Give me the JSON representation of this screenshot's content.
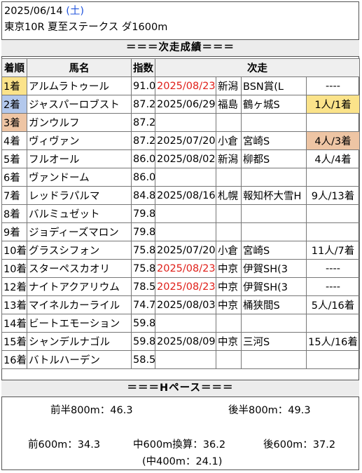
{
  "header": {
    "date": "2025/06/14",
    "weekday": "(土)",
    "race": "東京10R 夏至ステークス ダ1600m"
  },
  "sections": {
    "next_results": "＝＝＝次走成績＝＝＝",
    "pace": "＝＝＝Hペース＝＝＝"
  },
  "table": {
    "columns": [
      "着順",
      "馬名",
      "指数",
      "次走"
    ],
    "rows": [
      {
        "rank": "1着",
        "horse": "アルムラトゥール",
        "index": "91.0",
        "date": "2025/08/23",
        "place": "新潟",
        "race": "BSN賞(L",
        "result": "----"
      },
      {
        "rank": "2着",
        "horse": "ジャスパーロブスト",
        "index": "87.2",
        "date": "2025/06/29",
        "place": "福島",
        "race": "鶴ヶ城S",
        "result": "1人/1着"
      },
      {
        "rank": "3着",
        "horse": "ガンウルフ",
        "index": "87.2",
        "date": "",
        "place": "",
        "race": "",
        "result": ""
      },
      {
        "rank": "4着",
        "horse": "ヴィヴァン",
        "index": "87.2",
        "date": "2025/07/20",
        "place": "小倉",
        "race": "宮崎S",
        "result": "4人/3着"
      },
      {
        "rank": "5着",
        "horse": "フルオール",
        "index": "86.0",
        "date": "2025/08/02",
        "place": "新潟",
        "race": "柳都S",
        "result": "4人/4着"
      },
      {
        "rank": "6着",
        "horse": "ヴァンドーム",
        "index": "86.0",
        "date": "",
        "place": "",
        "race": "",
        "result": ""
      },
      {
        "rank": "7着",
        "horse": "レッドラパルマ",
        "index": "84.8",
        "date": "2025/08/16",
        "place": "札幌",
        "race": "報知杯大雪H",
        "result": "9人/13着"
      },
      {
        "rank": "8着",
        "horse": "バルミュゼット",
        "index": "79.8",
        "date": "",
        "place": "",
        "race": "",
        "result": ""
      },
      {
        "rank": "9着",
        "horse": "ジョディーズマロン",
        "index": "79.8",
        "date": "",
        "place": "",
        "race": "",
        "result": ""
      },
      {
        "rank": "10着",
        "horse": "グラスシフォン",
        "index": "75.8",
        "date": "2025/07/20",
        "place": "小倉",
        "race": "宮崎S",
        "result": "11人/7着"
      },
      {
        "rank": "10着",
        "horse": "スターペスカオリ",
        "index": "75.8",
        "date": "2025/08/23",
        "place": "中京",
        "race": "伊賀SH(3",
        "result": "----"
      },
      {
        "rank": "12着",
        "horse": "ナイトアクアリウム",
        "index": "78.5",
        "date": "2025/08/23",
        "place": "中京",
        "race": "伊賀SH(3",
        "result": "----"
      },
      {
        "rank": "13着",
        "horse": "マイネルカーライル",
        "index": "74.7",
        "date": "2025/08/03",
        "place": "中京",
        "race": "桶狭間S",
        "result": "5人/16着"
      },
      {
        "rank": "14着",
        "horse": "ビートエモーション",
        "index": "59.8",
        "date": "",
        "place": "",
        "race": "",
        "result": ""
      },
      {
        "rank": "15着",
        "horse": "シャンデルナゴル",
        "index": "59.8",
        "date": "2025/08/09",
        "place": "中京",
        "race": "三河S",
        "result": "15人/16着"
      },
      {
        "rank": "16着",
        "horse": "バトルハーデン",
        "index": "58.5",
        "date": "",
        "place": "",
        "race": "",
        "result": ""
      }
    ]
  },
  "colors": {
    "rank1": "#fbe38a",
    "rank2": "#b3c8ec",
    "rank3": "#eec5a4",
    "red_date": "#e0201a",
    "weekday_blue": "#2255dd"
  },
  "pace": {
    "first_half": "前半800m：46.3",
    "second_half": "後半800m：49.3",
    "first_600": "前600m：34.3",
    "mid_600": "中600m換算：36.2",
    "last_600": "後600m：37.2",
    "mid_400": "(中400m：24.1)"
  }
}
